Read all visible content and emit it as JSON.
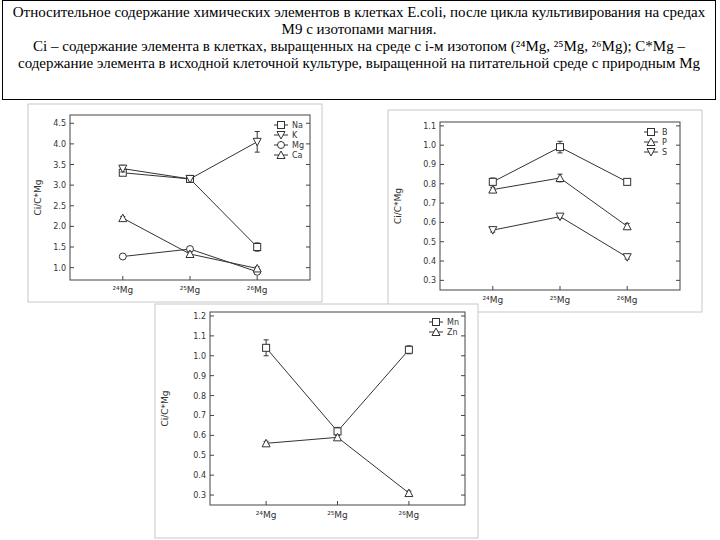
{
  "header": {
    "title": "Относительное содержание химических элементов в клетках E.coli, после цикла культивирования на средах М9 с изотопами магния.",
    "caption": "Ci – содержание элемента в клетках, выращенных на среде с i-м изотопом (²⁴Mg, ²⁵Mg, ²⁶Mg);  C*Mg – содержание элемента в исходной клеточной культуре, выращенной на питательной среде с природным Mg"
  },
  "chart_data": [
    {
      "type": "line",
      "y_label": "Ci/C*Mg",
      "categories": [
        "²⁴Mg",
        "²⁵Mg",
        "²⁶Mg"
      ],
      "series": [
        {
          "name": "Na",
          "color": "#333333",
          "marker": "square",
          "values": [
            3.3,
            3.15,
            1.5
          ],
          "errors": [
            0.06,
            0.06,
            0.1
          ]
        },
        {
          "name": "K",
          "color": "#333333",
          "marker": "triangle-down",
          "values": [
            3.4,
            3.15,
            4.05
          ],
          "errors": [
            0.08,
            0.08,
            0.25
          ]
        },
        {
          "name": "Mg",
          "color": "#333333",
          "marker": "circle",
          "values": [
            1.27,
            1.45,
            0.9
          ],
          "errors": [
            0.03,
            0.06,
            0.05
          ]
        },
        {
          "name": "Ca",
          "color": "#333333",
          "marker": "triangle",
          "values": [
            2.2,
            1.33,
            0.98
          ],
          "errors": [
            0.04,
            0.05,
            0.04
          ]
        }
      ],
      "ylim": [
        0.7,
        4.7
      ],
      "yticks": [
        {
          "value": 1,
          "label": "1.0"
        },
        1.5,
        {
          "value": 2,
          "label": "2.0"
        },
        2.5,
        {
          "value": 3,
          "label": "3.0"
        },
        3.5,
        {
          "value": 4,
          "label": "4.0"
        },
        4.5
      ],
      "legend": "upper right",
      "grid": false
    },
    {
      "type": "line",
      "y_label": "Ci/C*Mg",
      "categories": [
        "²⁴Mg",
        "²⁵Mg",
        "²⁶Mg"
      ],
      "series": [
        {
          "name": "B",
          "color": "#333333",
          "marker": "square",
          "values": [
            0.81,
            0.99,
            0.81
          ],
          "errors": [
            0.02,
            0.03,
            0.015
          ]
        },
        {
          "name": "P",
          "color": "#333333",
          "marker": "triangle",
          "values": [
            0.77,
            0.83,
            0.58
          ],
          "errors": [
            0.01,
            0.02,
            0.015
          ]
        },
        {
          "name": "S",
          "color": "#333333",
          "marker": "triangle-down",
          "values": [
            0.56,
            0.63,
            0.42
          ],
          "errors": [
            0.01,
            0.01,
            0.01
          ]
        }
      ],
      "ylim": [
        0.25,
        1.12
      ],
      "yticks": [
        0.3,
        0.4,
        0.5,
        0.6,
        0.7,
        0.8,
        0.9,
        {
          "value": 1,
          "label": "1.0"
        },
        1.1
      ],
      "legend": "upper right",
      "grid": false
    },
    {
      "type": "line",
      "y_label": "Ci/C*Mg",
      "categories": [
        "²⁴Mg",
        "²⁵Mg",
        "²⁶Mg"
      ],
      "series": [
        {
          "name": "Mn",
          "color": "#333333",
          "marker": "square",
          "values": [
            1.04,
            0.62,
            1.03
          ],
          "errors": [
            0.04,
            0.02,
            0.02
          ]
        },
        {
          "name": "Zn",
          "color": "#333333",
          "marker": "triangle",
          "values": [
            0.56,
            0.59,
            0.31
          ],
          "errors": [
            0.01,
            0.01,
            0.01
          ]
        }
      ],
      "ylim": [
        0.25,
        1.22
      ],
      "yticks": [
        0.3,
        0.4,
        0.5,
        0.6,
        0.7,
        0.8,
        0.9,
        {
          "value": 1,
          "label": "1.0"
        },
        1.1,
        1.2
      ],
      "legend": "upper right",
      "grid": false
    }
  ]
}
